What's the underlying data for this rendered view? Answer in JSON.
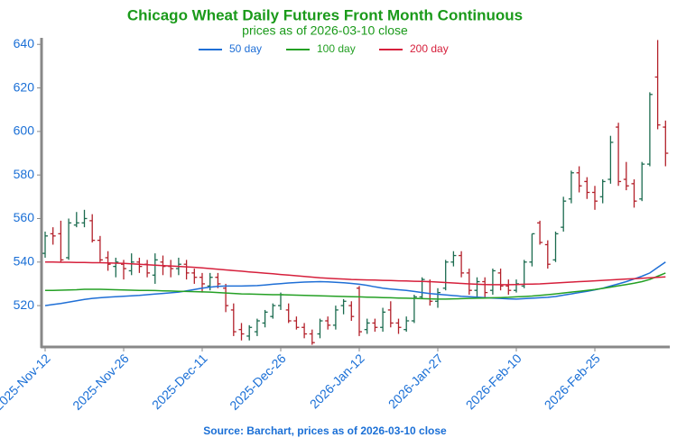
{
  "chart_data": {
    "type": "ohlc",
    "title": "Chicago Wheat Daily Futures Front Month Continuous",
    "subtitle": "prices as of 2026-03-10 close",
    "source": "Source: Barchart, prices as of 2026-03-10 close",
    "categories": [
      "2025-Nov-12",
      null,
      null,
      null,
      null,
      null,
      null,
      null,
      null,
      null,
      "2025-Nov-26",
      null,
      null,
      null,
      null,
      null,
      null,
      null,
      null,
      null,
      "2025-Dec-11",
      null,
      null,
      null,
      null,
      null,
      null,
      null,
      null,
      null,
      "2025-Dec-26",
      null,
      null,
      null,
      null,
      null,
      null,
      null,
      null,
      null,
      "2026-Jan-12",
      null,
      null,
      null,
      null,
      null,
      null,
      null,
      null,
      null,
      "2026-Jan-27",
      null,
      null,
      null,
      null,
      null,
      null,
      null,
      null,
      null,
      "2026-Feb-10",
      null,
      null,
      null,
      null,
      null,
      null,
      null,
      null,
      null,
      "2026-Feb-25",
      null,
      null,
      null,
      null,
      null,
      null,
      null,
      null,
      null
    ],
    "ohlc": {
      "up_color": "#1b6b4f",
      "down_color": "#b3202a",
      "open": [
        544,
        553,
        553,
        542,
        557,
        558,
        559,
        550,
        542,
        538,
        539,
        536,
        540,
        539,
        534,
        540,
        538,
        537,
        539,
        535,
        533,
        529,
        533,
        528,
        518,
        509,
        506,
        508,
        512,
        515,
        520,
        518,
        513,
        510,
        507,
        507,
        513,
        511,
        520,
        520,
        528,
        509,
        512,
        510,
        518,
        512,
        509,
        513,
        524,
        531,
        522,
        528,
        540,
        543,
        535,
        527,
        531,
        527,
        535,
        529,
        527,
        529,
        540,
        558,
        548,
        541,
        556,
        569,
        581,
        577,
        572,
        570,
        578,
        602,
        578,
        576,
        569,
        585,
        625,
        602
      ],
      "high": [
        554,
        556,
        559,
        560,
        563,
        564,
        562,
        552,
        545,
        542,
        541,
        544,
        542,
        541,
        544,
        543,
        541,
        542,
        541,
        537,
        535,
        535,
        535,
        530,
        521,
        512,
        511,
        514,
        518,
        521,
        526,
        521,
        515,
        512,
        509,
        514,
        515,
        520,
        523,
        522,
        529,
        514,
        514,
        519,
        522,
        514,
        515,
        525,
        533,
        532,
        528,
        541,
        545,
        545,
        537,
        533,
        533,
        537,
        537,
        532,
        532,
        541,
        553,
        559,
        550,
        554,
        570,
        582,
        584,
        579,
        575,
        578,
        598,
        604,
        586,
        578,
        586,
        618,
        642,
        605
      ],
      "low": [
        542,
        548,
        540,
        541,
        556,
        556,
        549,
        540,
        536,
        533,
        532,
        534,
        535,
        533,
        530,
        534,
        533,
        534,
        532,
        530,
        526,
        527,
        528,
        517,
        506,
        504,
        504,
        506,
        510,
        514,
        518,
        512,
        509,
        505,
        502,
        505,
        509,
        509,
        516,
        513,
        506,
        507,
        508,
        508,
        510,
        507,
        508,
        512,
        523,
        520,
        519,
        527,
        538,
        533,
        525,
        524,
        524,
        525,
        527,
        525,
        526,
        528,
        538,
        548,
        537,
        540,
        554,
        567,
        572,
        569,
        564,
        567,
        576,
        575,
        573,
        565,
        568,
        584,
        601,
        584
      ],
      "close": [
        552,
        552,
        541,
        558,
        558,
        560,
        550,
        541,
        539,
        540,
        537,
        540,
        538,
        535,
        541,
        538,
        537,
        539,
        535,
        533,
        530,
        533,
        530,
        520,
        508,
        507,
        510,
        513,
        517,
        520,
        525,
        513,
        510,
        507,
        503,
        513,
        511,
        518,
        522,
        515,
        508,
        512,
        510,
        517,
        512,
        510,
        513,
        524,
        532,
        522,
        526,
        540,
        543,
        535,
        527,
        531,
        526,
        536,
        529,
        527,
        530,
        540,
        553,
        549,
        539,
        553,
        568,
        581,
        575,
        572,
        568,
        577,
        595,
        577,
        575,
        568,
        585,
        617,
        603,
        590
      ]
    },
    "series": [
      {
        "name": "50 day",
        "color": "#1f6fd6",
        "values": [
          520.0,
          520.5,
          521.0,
          521.6,
          522.2,
          522.8,
          523.3,
          523.6,
          523.9,
          524.1,
          524.3,
          524.5,
          524.7,
          525.0,
          525.3,
          525.6,
          525.9,
          526.2,
          526.8,
          527.4,
          528.0,
          528.5,
          528.8,
          529.0,
          529.0,
          529.0,
          529.1,
          529.2,
          529.5,
          529.8,
          530.1,
          530.4,
          530.6,
          530.8,
          530.9,
          531.0,
          530.9,
          530.7,
          530.5,
          530.2,
          529.8,
          529.3,
          528.6,
          528.0,
          527.6,
          527.3,
          527.0,
          526.5,
          526.0,
          525.5,
          525.2,
          524.9,
          524.6,
          524.3,
          524.1,
          523.9,
          523.7,
          523.5,
          523.3,
          523.1,
          523.0,
          523.2,
          523.4,
          523.6,
          523.8,
          524.2,
          524.8,
          525.4,
          526.0,
          526.6,
          527.2,
          528.0,
          529.0,
          530.0,
          531.0,
          532.2,
          533.5,
          535.0,
          537.5,
          540.0
        ]
      },
      {
        "name": "100 day",
        "color": "#24a024",
        "values": [
          527.0,
          527.0,
          527.1,
          527.2,
          527.3,
          527.5,
          527.5,
          527.5,
          527.4,
          527.3,
          527.2,
          527.1,
          527.0,
          527.0,
          526.9,
          526.8,
          526.7,
          526.6,
          526.5,
          526.4,
          526.3,
          526.2,
          526.0,
          525.8,
          525.6,
          525.4,
          525.3,
          525.2,
          525.1,
          525.0,
          525.0,
          524.9,
          524.8,
          524.7,
          524.6,
          524.5,
          524.4,
          524.3,
          524.2,
          524.1,
          524.0,
          523.9,
          523.8,
          523.7,
          523.6,
          523.5,
          523.4,
          523.3,
          523.2,
          523.1,
          523.0,
          523.0,
          523.1,
          523.2,
          523.3,
          523.4,
          523.5,
          523.6,
          523.7,
          523.8,
          524.0,
          524.2,
          524.4,
          524.7,
          525.0,
          525.4,
          525.8,
          526.2,
          526.6,
          527.0,
          527.4,
          527.9,
          528.5,
          529.1,
          529.7,
          530.3,
          531.0,
          532.0,
          533.5,
          535.0
        ]
      },
      {
        "name": "200 day",
        "color": "#d6203c",
        "values": [
          540.0,
          540.0,
          539.9,
          539.9,
          539.8,
          539.8,
          539.7,
          539.7,
          539.6,
          539.5,
          539.4,
          539.2,
          539.0,
          538.8,
          538.6,
          538.4,
          538.2,
          538.0,
          537.8,
          537.6,
          537.3,
          537.0,
          536.7,
          536.4,
          536.1,
          535.8,
          535.5,
          535.2,
          534.9,
          534.6,
          534.3,
          534.0,
          533.7,
          533.4,
          533.1,
          532.8,
          532.6,
          532.4,
          532.2,
          532.0,
          531.9,
          531.8,
          531.7,
          531.6,
          531.5,
          531.4,
          531.3,
          531.2,
          531.1,
          531.0,
          530.8,
          530.6,
          530.4,
          530.2,
          530.0,
          529.8,
          529.7,
          529.6,
          529.6,
          529.6,
          529.7,
          529.8,
          529.9,
          530.0,
          530.2,
          530.4,
          530.6,
          530.8,
          531.0,
          531.2,
          531.4,
          531.6,
          531.8,
          532.0,
          532.2,
          532.4,
          532.6,
          532.8,
          533.0,
          533.2
        ]
      }
    ],
    "ylim": [
      501,
      643
    ],
    "yticks": [
      520,
      540,
      560,
      580,
      600,
      620,
      640
    ],
    "legend": "top",
    "grid": false
  }
}
